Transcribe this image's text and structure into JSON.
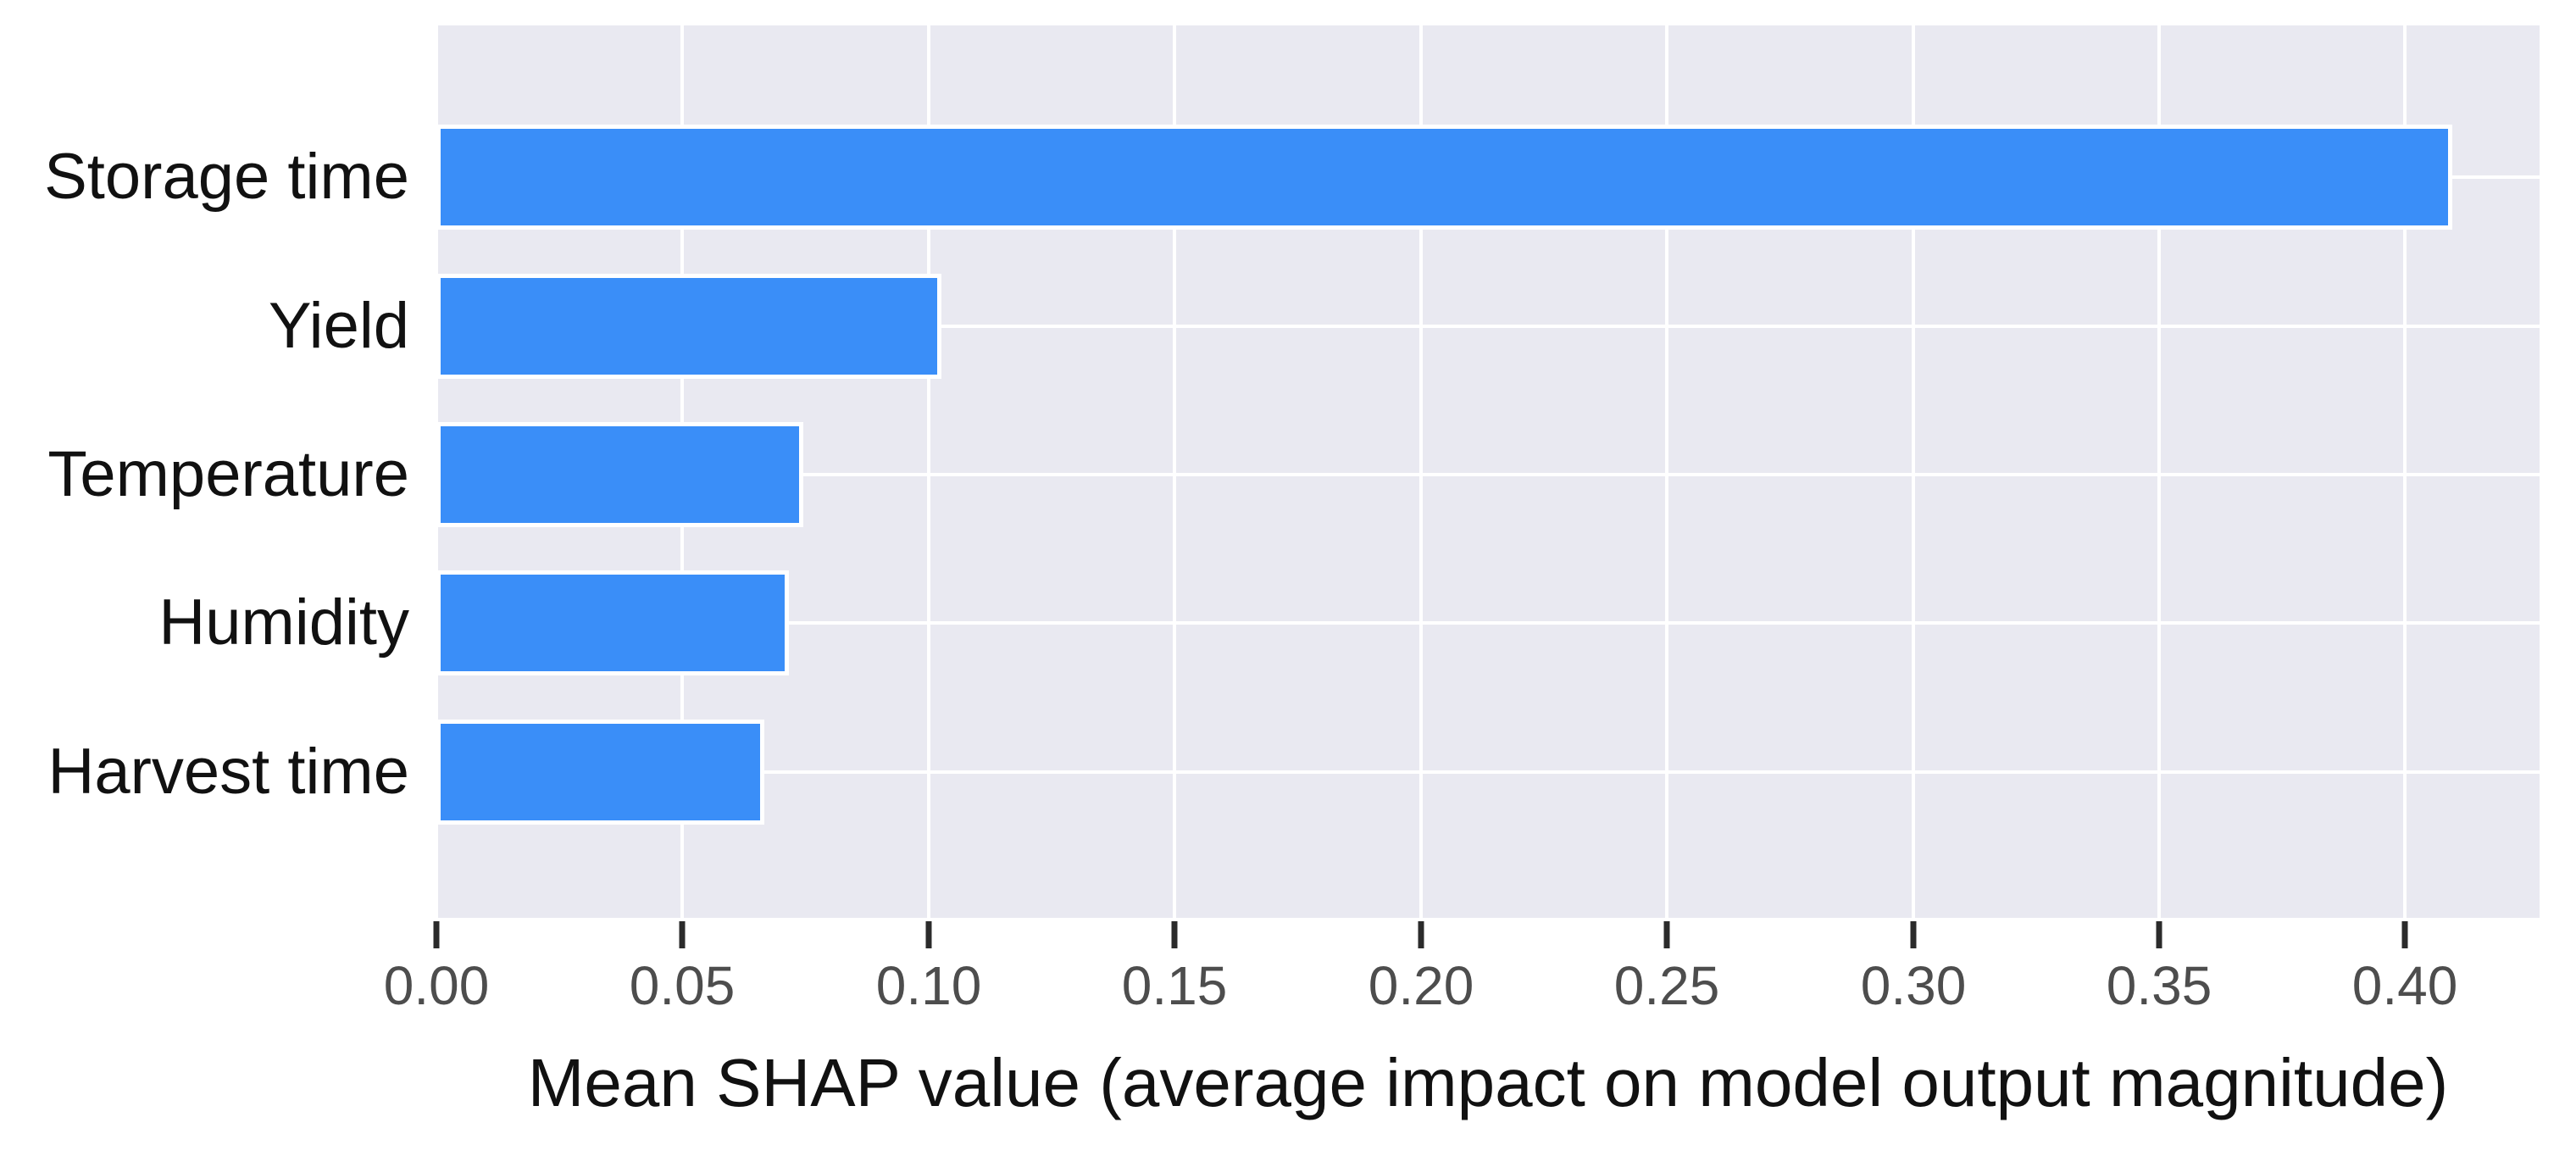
{
  "chart_data": {
    "type": "bar",
    "orientation": "horizontal",
    "title": "",
    "xlabel": "Mean SHAP value (average impact on model output magnitude)",
    "ylabel": "",
    "categories": [
      "Storage time",
      "Yield",
      "Temperature",
      "Humidity",
      "Harvest time"
    ],
    "values": [
      0.408,
      0.101,
      0.073,
      0.07,
      0.065
    ],
    "xlim": [
      0,
      0.4273
    ],
    "xticks": [
      0.0,
      0.05,
      0.1,
      0.15,
      0.2,
      0.25,
      0.3,
      0.35,
      0.4
    ],
    "xtick_labels": [
      "0.00",
      "0.05",
      "0.10",
      "0.15",
      "0.20",
      "0.25",
      "0.30",
      "0.35",
      "0.40"
    ],
    "grid": true,
    "legend": false,
    "colors": {
      "bar": "#3a8ef8",
      "bar_edge": "#ffffff",
      "plot_background": "#e9e9f1",
      "grid": "#ffffff",
      "tick": "#2b2b2b",
      "tick_label": "#4d4d4d",
      "axis_label": "#111111",
      "figure_background": "#ffffff"
    }
  }
}
